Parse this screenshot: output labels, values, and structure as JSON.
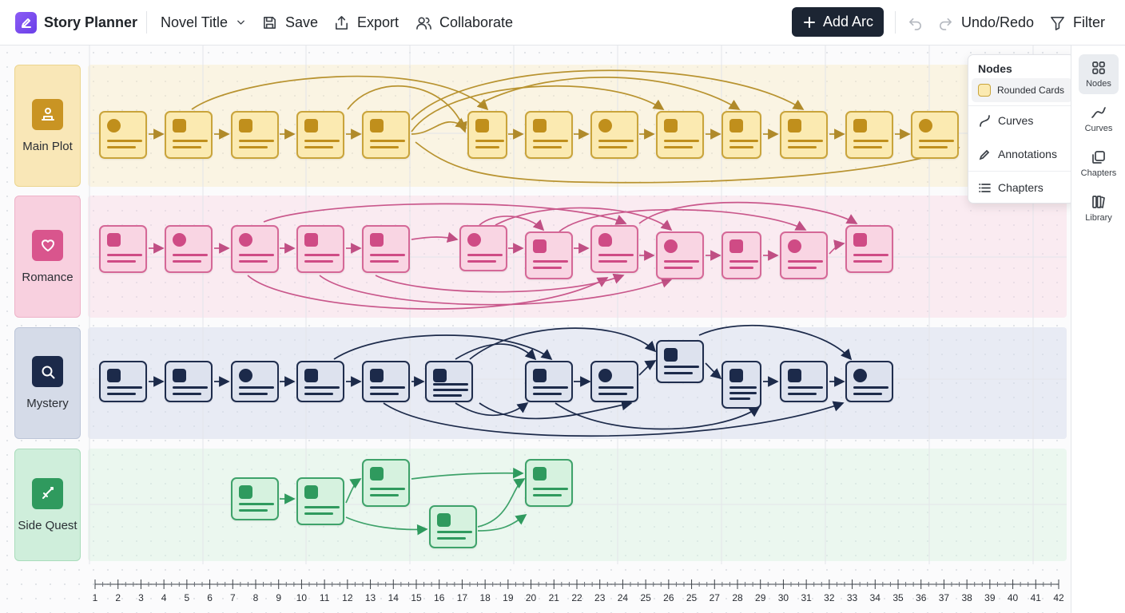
{
  "toolbar": {
    "app_name": "Story Planner",
    "project_title": "Novel Title",
    "save_label": "Save",
    "export_label": "Export",
    "collaborate_label": "Collaborate",
    "add_arc_label": "Add Arc",
    "undo_redo_label": "Undo/Redo",
    "filter_label": "Filter"
  },
  "lanes": [
    {
      "label": "Main Plot",
      "color": "#c08f1c",
      "icon": "podium-icon"
    },
    {
      "label": "Romance",
      "color": "#cf4b85",
      "icon": "heart-icon"
    },
    {
      "label": "Mystery",
      "color": "#1c2a4a",
      "icon": "magnifier-icon"
    },
    {
      "label": "Side Quest",
      "color": "#2f9a5e",
      "icon": "sword-icon"
    }
  ],
  "popover": {
    "title": "Nodes",
    "items": [
      "Rounded Cards",
      "Curves",
      "Annotations",
      "Chapters"
    ]
  },
  "rail": {
    "items": [
      "Nodes",
      "Curves",
      "Chapters",
      "Library"
    ]
  },
  "timeline": {
    "ticks": [
      "1",
      "2",
      "3",
      "4",
      "5",
      "6",
      "7",
      "8",
      "9",
      "10",
      "11",
      "12",
      "13",
      "14",
      "15",
      "16",
      "17",
      "18",
      "19",
      "20",
      "21",
      "22",
      "23",
      "24",
      "25",
      "26",
      "25",
      "27",
      "28",
      "29",
      "30",
      "31",
      "32",
      "33",
      "34",
      "35",
      "36",
      "37",
      "38",
      "39",
      "40",
      "41",
      "42"
    ]
  },
  "colors": {
    "main_plot": "#c08f1c",
    "romance": "#cf4b85",
    "mystery": "#1c2a4a",
    "side_quest": "#2f9a5e",
    "toolbar_button": "#1c2533"
  }
}
